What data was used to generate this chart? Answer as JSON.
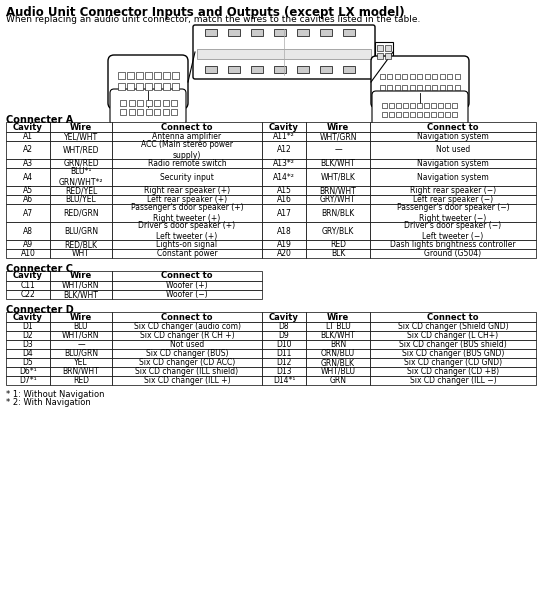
{
  "title": "Audio Unit Connector Inputs and Outputs (except LX model)",
  "subtitle": "When replacing an audio unit connector, match the wires to the cavities listed in the table.",
  "connector_a_label": "Connecter A",
  "connector_a_headers": [
    "Cavity",
    "Wire",
    "Connect to",
    "Cavity",
    "Wire",
    "Connect to"
  ],
  "connector_a_rows": [
    [
      "A1",
      "YEL/WHT",
      "Antenna amplifier",
      "A11*²",
      "WHT/GRN",
      "Navigation system"
    ],
    [
      "A2",
      "WHT/RED",
      "ACC (Main stereo power\nsupply)",
      "A12",
      "—",
      "Not used"
    ],
    [
      "A3",
      "GRN/RED",
      "Radio remote switch",
      "A13*²",
      "BLK/WHT",
      "Navigation system"
    ],
    [
      "A4",
      "BLU*¹\nGRN/WHT*²",
      "Security input",
      "A14*²",
      "WHT/BLK",
      "Navigation system"
    ],
    [
      "A5",
      "RED/YEL",
      "Right rear speaker (+)",
      "A15",
      "BRN/WHT",
      "Right rear speaker (−)"
    ],
    [
      "A6",
      "BLU/YEL",
      "Left rear speaker (+)",
      "A16",
      "GRY/WHT",
      "Left rear speaker (−)"
    ],
    [
      "A7",
      "RED/GRN",
      "Passenger's door speaker (+)\nRight tweeter (+)",
      "A17",
      "BRN/BLK",
      "Passenger's door speaker (−)\nRight tweeter (−)"
    ],
    [
      "A8",
      "BLU/GRN",
      "Driver's door speaker (+)\nLeft tweeter (+)",
      "A18",
      "GRY/BLK",
      "Driver's door speaker (−)\nLeft tweeter (−)"
    ],
    [
      "A9",
      "RED/BLK",
      "Lights-on signal",
      "A19",
      "RED",
      "Dash lights brightness controller"
    ],
    [
      "A10",
      "WHT",
      "Constant power",
      "A20",
      "BLK",
      "Ground (G504)"
    ]
  ],
  "connector_c_label": "Connecter C",
  "connector_c_headers": [
    "Cavity",
    "Wire",
    "Connect to"
  ],
  "connector_c_rows": [
    [
      "C11",
      "WHT/GRN",
      "Woofer (+)"
    ],
    [
      "C22",
      "BLK/WHT",
      "Woofer (−)"
    ]
  ],
  "connector_d_label": "Connecter D",
  "connector_d_headers": [
    "Cavity",
    "Wire",
    "Connect to",
    "Cavity",
    "Wire",
    "Connect to"
  ],
  "connector_d_rows": [
    [
      "D1",
      "BLU",
      "Six CD changer (audio com)",
      "D8",
      "LT BLU",
      "Six CD changer (Shield GND)"
    ],
    [
      "D2",
      "WHT/GRN",
      "Six CD changer (R CH +)",
      "D9",
      "BLK/WHT",
      "Six CD changer (L CH+)"
    ],
    [
      "D3",
      "—",
      "Not used",
      "D10",
      "BRN",
      "Six CD changer (BUS shield)"
    ],
    [
      "D4",
      "BLU/GRN",
      "Six CD changer (BUS)",
      "D11",
      "ORN/BLU",
      "Six CD changer (BUS GND)"
    ],
    [
      "D5",
      "YEL",
      "Six CD changer (CD ACC)",
      "D12",
      "GRN/BLK",
      "Six CD changer (CD GND)"
    ],
    [
      "D6*¹",
      "BRN/WHT",
      "Six CD changer (ILL shield)",
      "D13",
      "WHT/BLU",
      "Six CD changer (CD +B)"
    ],
    [
      "D7*¹",
      "RED",
      "Six CD changer (ILL +)",
      "D14*¹",
      "GRN",
      "Six CD changer (ILL −)"
    ]
  ],
  "footnotes": [
    "* 1: Without Navigation",
    "* 2: With Navigation"
  ],
  "fig_width": 5.44,
  "fig_height": 6.07,
  "dpi": 100
}
